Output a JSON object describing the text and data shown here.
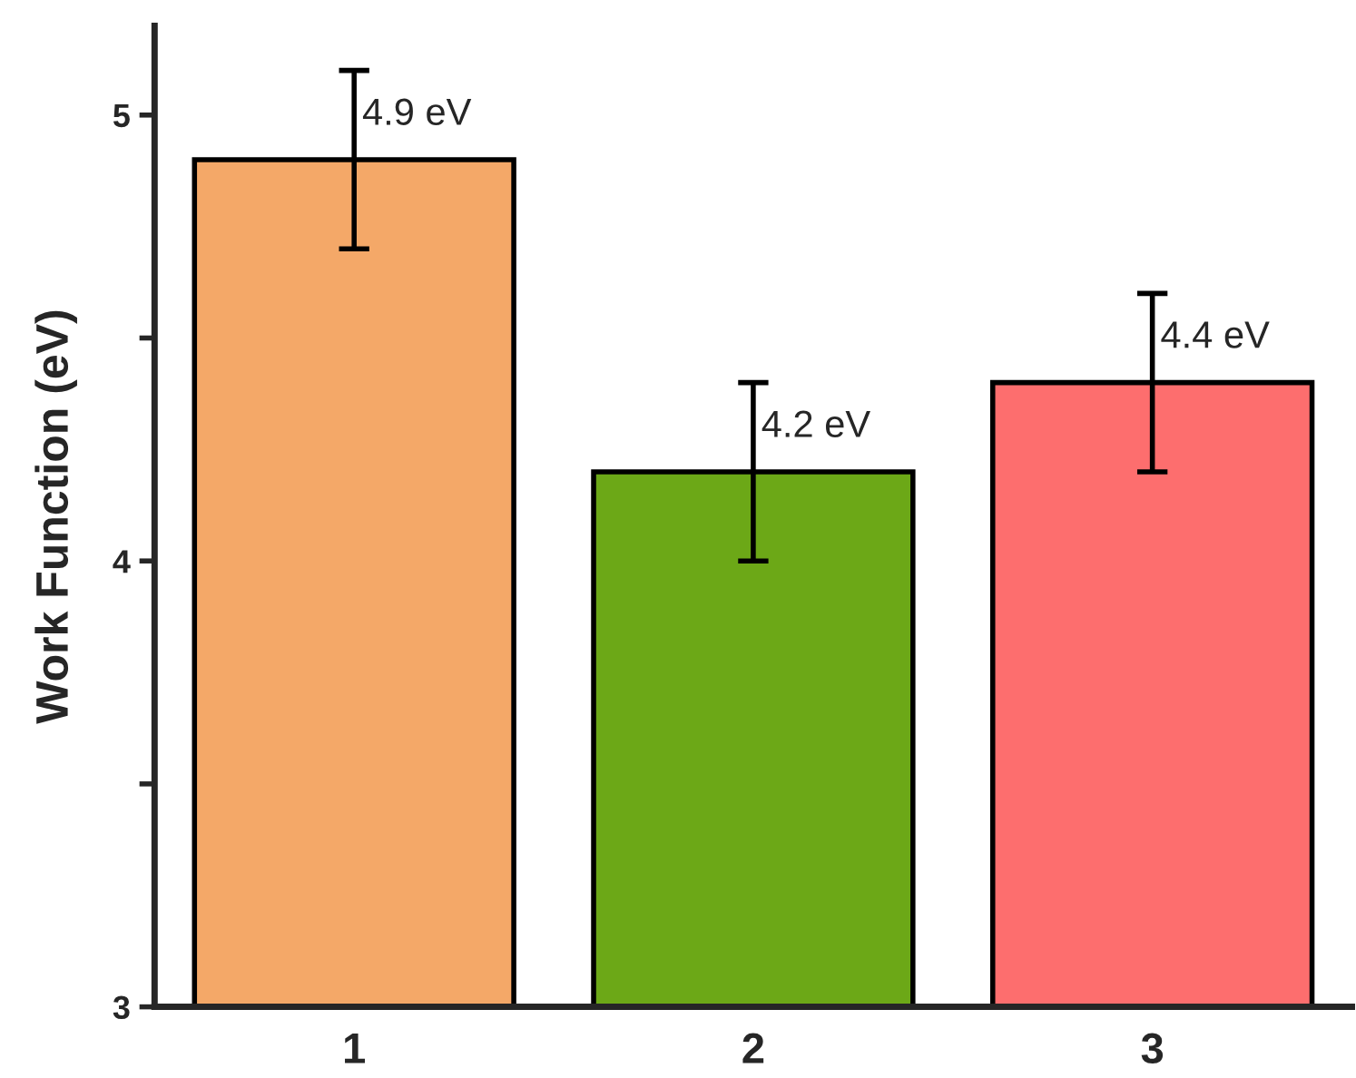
{
  "chart_data": {
    "type": "bar",
    "ylabel": "Work Function (eV)",
    "categories": [
      "1",
      "2",
      "3"
    ],
    "values": [
      4.9,
      4.2,
      4.4
    ],
    "errors": [
      0.2,
      0.2,
      0.2
    ],
    "colors": [
      "#f4a868",
      "#6ca817",
      "#fd6e6e"
    ],
    "value_labels": [
      "4.9 eV",
      "4.2 eV",
      "4.4 eV"
    ],
    "ylim": [
      3,
      5.2
    ],
    "yticks": [
      3,
      {
        "value": 3.5,
        "label": null
      },
      4,
      {
        "value": 4.5,
        "label": null
      },
      5
    ],
    "grid": false,
    "legend": false
  }
}
